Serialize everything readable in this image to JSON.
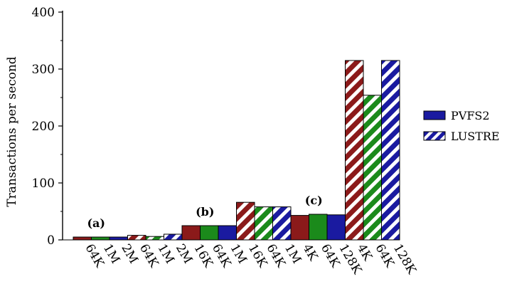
{
  "chart_data": {
    "type": "bar",
    "title": "",
    "ylabel": "Transactions per second",
    "xlabel": "",
    "ylim": [
      0,
      400
    ],
    "yticks": [
      0,
      100,
      200,
      300,
      400
    ],
    "grid": false,
    "legend_position": "right",
    "legend": [
      {
        "name": "PVFS2",
        "pattern": "solid"
      },
      {
        "name": "LUSTRE",
        "pattern": "hatched"
      }
    ],
    "groups": [
      {
        "label": "(a)",
        "series": "PVFS2",
        "bars": [
          {
            "category": "64K",
            "value": 5,
            "color": "#8b1a1a"
          },
          {
            "category": "1M",
            "value": 5,
            "color": "#1b8a1b"
          },
          {
            "category": "2M",
            "value": 5,
            "color": "#1a1aa0"
          }
        ]
      },
      {
        "label": "",
        "series": "LUSTRE",
        "bars": [
          {
            "category": "64K",
            "value": 8,
            "color": "#8b1a1a"
          },
          {
            "category": "1M",
            "value": 6,
            "color": "#1b8a1b"
          },
          {
            "category": "2M",
            "value": 10,
            "color": "#1a1aa0"
          }
        ]
      },
      {
        "label": "(b)",
        "series": "PVFS2",
        "bars": [
          {
            "category": "16K",
            "value": 25,
            "color": "#8b1a1a"
          },
          {
            "category": "64K",
            "value": 25,
            "color": "#1b8a1b"
          },
          {
            "category": "1M",
            "value": 25,
            "color": "#1a1aa0"
          }
        ]
      },
      {
        "label": "",
        "series": "LUSTRE",
        "bars": [
          {
            "category": "16K",
            "value": 66,
            "color": "#8b1a1a"
          },
          {
            "category": "64K",
            "value": 58,
            "color": "#1b8a1b"
          },
          {
            "category": "1M",
            "value": 58,
            "color": "#1a1aa0"
          }
        ]
      },
      {
        "label": "(c)",
        "series": "PVFS2",
        "bars": [
          {
            "category": "4K",
            "value": 43,
            "color": "#8b1a1a"
          },
          {
            "category": "64K",
            "value": 45,
            "color": "#1b8a1b"
          },
          {
            "category": "128K",
            "value": 44,
            "color": "#1a1aa0"
          }
        ]
      },
      {
        "label": "",
        "series": "LUSTRE",
        "bars": [
          {
            "category": "4K",
            "value": 315,
            "color": "#8b1a1a"
          },
          {
            "category": "64K",
            "value": 254,
            "color": "#1b8a1b"
          },
          {
            "category": "128K",
            "value": 315,
            "color": "#1a1aa0"
          }
        ]
      }
    ]
  }
}
